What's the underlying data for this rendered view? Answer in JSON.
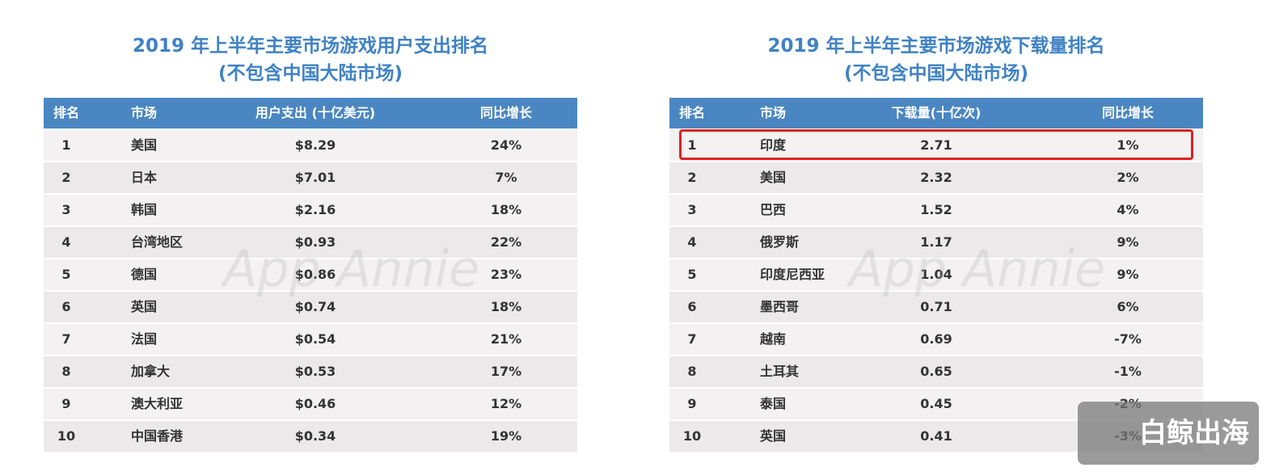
{
  "tables": [
    {
      "title": [
        "2019 年上半年主要市场游戏用户支出排名",
        "(不包含中国大陆市场)"
      ],
      "headers": [
        "排名",
        "市场",
        "用户支出 (十亿美元)",
        "同比增长"
      ],
      "rows": [
        [
          "1",
          "美国",
          "$8.29",
          "24%"
        ],
        [
          "2",
          "日本",
          "$7.01",
          "7%"
        ],
        [
          "3",
          "韩国",
          "$2.16",
          "18%"
        ],
        [
          "4",
          "台湾地区",
          "$0.93",
          "22%"
        ],
        [
          "5",
          "德国",
          "$0.86",
          "23%"
        ],
        [
          "6",
          "英国",
          "$0.74",
          "18%"
        ],
        [
          "7",
          "法国",
          "$0.54",
          "21%"
        ],
        [
          "8",
          "加拿大",
          "$0.53",
          "17%"
        ],
        [
          "9",
          "澳大利亚",
          "$0.46",
          "12%"
        ],
        [
          "10",
          "中国香港",
          "$0.34",
          "19%"
        ]
      ],
      "watermark": "App Annie"
    },
    {
      "title": [
        "2019 年上半年主要市场游戏下载量排名",
        "(不包含中国大陆市场)"
      ],
      "headers": [
        "排名",
        "市场",
        "下载量(十亿次)",
        "同比增长"
      ],
      "rows": [
        [
          "1",
          "印度",
          "2.71",
          "1%"
        ],
        [
          "2",
          "美国",
          "2.32",
          "2%"
        ],
        [
          "3",
          "巴西",
          "1.52",
          "4%"
        ],
        [
          "4",
          "俄罗斯",
          "1.17",
          "9%"
        ],
        [
          "5",
          "印度尼西亚",
          "1.04",
          "9%"
        ],
        [
          "6",
          "墨西哥",
          "0.71",
          "6%"
        ],
        [
          "7",
          "越南",
          "0.69",
          "-7%"
        ],
        [
          "8",
          "土耳其",
          "0.65",
          "-1%"
        ],
        [
          "9",
          "泰国",
          "0.45",
          "-2%"
        ],
        [
          "10",
          "英国",
          "0.41",
          "-3%"
        ]
      ],
      "watermark": "App Annie"
    }
  ],
  "logo": "白鲸出海"
}
